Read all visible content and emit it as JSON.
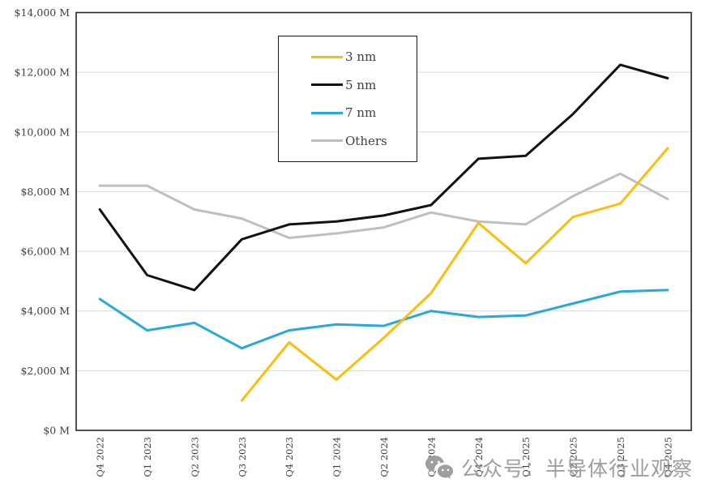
{
  "watermark": {
    "text": "公众号：半导体行业观察"
  },
  "colors": {
    "axis_border": "#262626",
    "gridline": "#d9d9d9",
    "tick_text": "#404040",
    "watermark": "#9e9e9e"
  },
  "chart_data": {
    "type": "line",
    "title": "",
    "xlabel": "",
    "ylabel": "",
    "grid": "horizontal",
    "legend_position": "inside-top-center-boxed",
    "y_axis": {
      "min": 0,
      "max": 14000,
      "step": 2000,
      "tick_labels": [
        "$0 M",
        "$2,000 M",
        "$4,000 M",
        "$6,000 M",
        "$8,000 M",
        "$10,000 M",
        "$12,000 M",
        "$14,000 M"
      ]
    },
    "categories": [
      "Q4 2022",
      "Q1 2023",
      "Q2 2023",
      "Q3 2023",
      "Q4 2023",
      "Q1 2024",
      "Q2 2024",
      "Q3 2024",
      "Q4 2024",
      "Q1 2025",
      "Q2 2025",
      "Q3 2025",
      "Q4 2025"
    ],
    "series": [
      {
        "name": "3 nm",
        "color": "#FCBE0D",
        "values": [
          null,
          null,
          null,
          1000,
          2950,
          1700,
          3100,
          4600,
          6950,
          5600,
          7150,
          7600,
          9450
        ]
      },
      {
        "name": "5 nm",
        "color": "#121212",
        "values": [
          7400,
          5200,
          4700,
          6400,
          6900,
          7000,
          7200,
          7550,
          9100,
          9200,
          10600,
          12250,
          11800
        ]
      },
      {
        "name": "7 nm",
        "color": "#29A8DC",
        "values": [
          4400,
          3350,
          3600,
          2750,
          3350,
          3550,
          3500,
          4000,
          3800,
          3850,
          4250,
          4650,
          4700
        ]
      },
      {
        "name": "Others",
        "color": "#BFBFBF",
        "values": [
          8200,
          8200,
          7400,
          7100,
          6450,
          6600,
          6800,
          7300,
          7000,
          6900,
          7850,
          8600,
          7750
        ]
      }
    ]
  }
}
